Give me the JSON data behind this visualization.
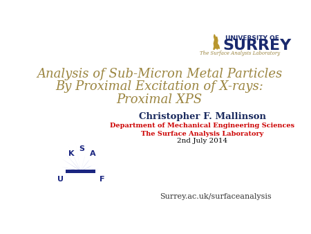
{
  "bg_color": "#ffffff",
  "title_line1": "Analysis of Sub-Micron Metal Particles",
  "title_line2": "By Proximal Excitation of X-rays:",
  "title_line3": "Proximal XPS",
  "title_color": "#9B8540",
  "author": "Christopher F. Mallinson",
  "author_color": "#1a2a5e",
  "dept": "Department of Mechanical Engineering Sciences",
  "dept_color": "#cc0000",
  "lab": "The Surface Analysis Laboratory",
  "lab_color": "#cc0000",
  "date": "2nd July 2014",
  "date_color": "#000000",
  "url": "Surrey.ac.uk/surfaceanalysis",
  "url_color": "#333333",
  "surrey_line1": "UNIVERSITY OF",
  "surrey_line2": "SURREY",
  "surrey_color": "#1a2a6e",
  "surrey_sub": "The Surface Analysis Laboratory",
  "surrey_sub_color": "#9B8540",
  "stag_color": "#b8962e"
}
